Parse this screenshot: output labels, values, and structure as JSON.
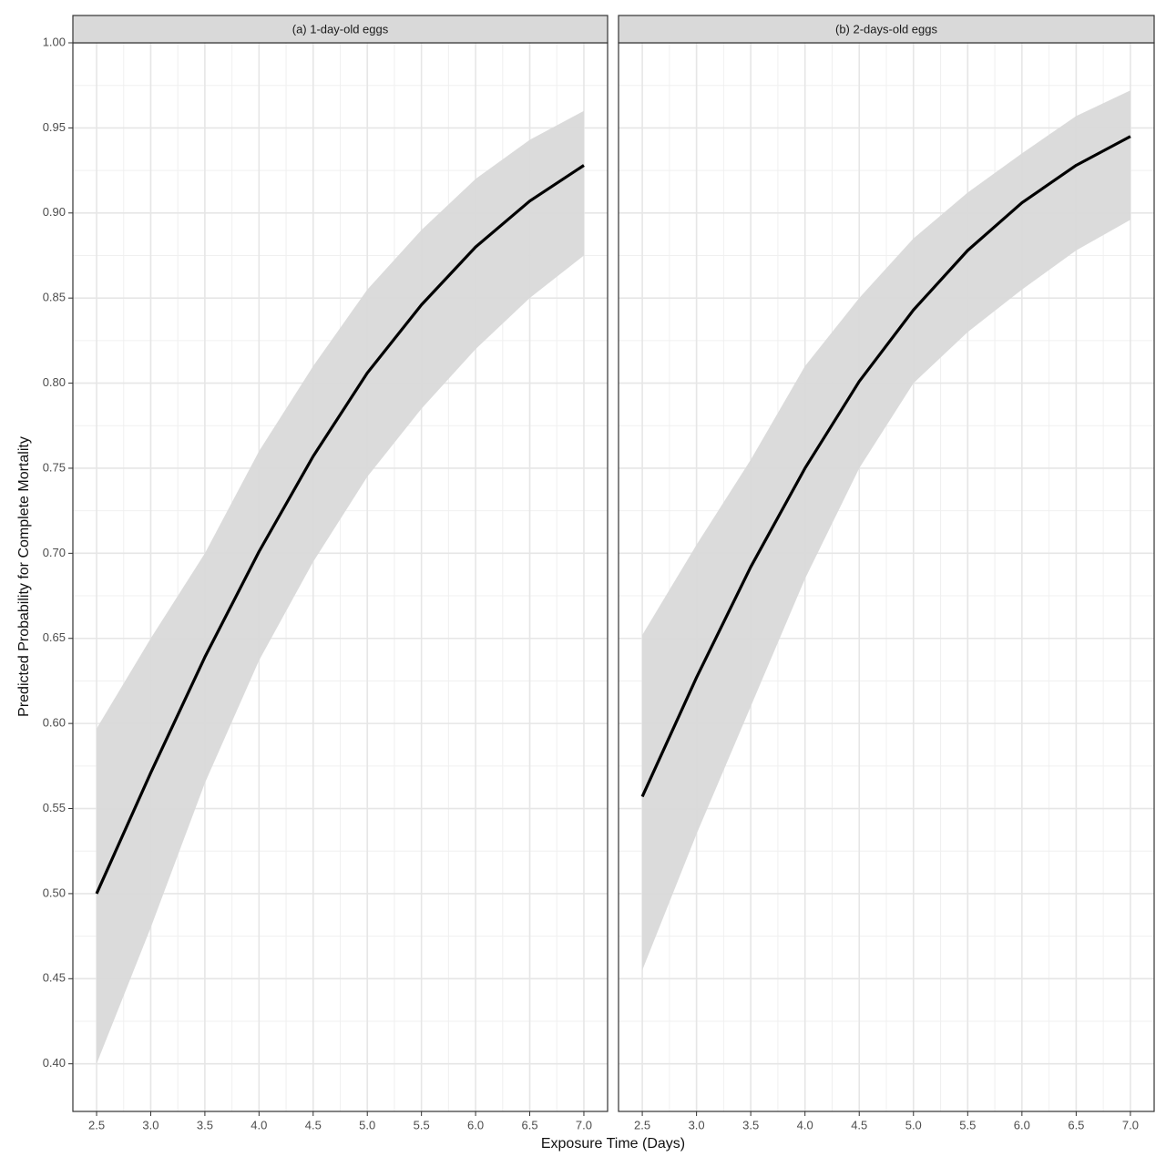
{
  "x_label": "Exposure Time (Days)",
  "y_label": "Predicted Probability for Complete Mortality",
  "chart_data": [
    {
      "type": "line",
      "title": "(a) 1-day-old eggs",
      "x": [
        2.5,
        3.0,
        3.5,
        4.0,
        4.5,
        5.0,
        5.5,
        6.0,
        6.5,
        7.0
      ],
      "series": [
        {
          "color": "#000000",
          "band_color": "#d9d9d9",
          "values": [
            0.5,
            0.571,
            0.639,
            0.701,
            0.757,
            0.806,
            0.846,
            0.88,
            0.907,
            0.928
          ],
          "lower": [
            0.4,
            0.48,
            0.565,
            0.637,
            0.695,
            0.745,
            0.785,
            0.82,
            0.85,
            0.875
          ],
          "upper": [
            0.597,
            0.65,
            0.7,
            0.76,
            0.81,
            0.855,
            0.89,
            0.92,
            0.943,
            0.96
          ]
        }
      ],
      "xlim": [
        2.281,
        7.219
      ],
      "ylim": [
        0.372,
        1.0
      ],
      "xticks": [
        2.5,
        {
          "value": 3,
          "label": "3.0"
        },
        3.5,
        {
          "value": 4,
          "label": "4.0"
        },
        4.5,
        {
          "value": 5,
          "label": "5.0"
        },
        5.5,
        {
          "value": 6,
          "label": "6.0"
        },
        6.5,
        {
          "value": 7,
          "label": "7.0"
        }
      ],
      "yticks": [
        {
          "value": 0.4,
          "label": "0.40"
        },
        {
          "value": 0.45,
          "label": "0.45"
        },
        {
          "value": 0.5,
          "label": "0.50"
        },
        {
          "value": 0.55,
          "label": "0.55"
        },
        {
          "value": 0.6,
          "label": "0.60"
        },
        {
          "value": 0.65,
          "label": "0.65"
        },
        {
          "value": 0.7,
          "label": "0.70"
        },
        {
          "value": 0.75,
          "label": "0.75"
        },
        {
          "value": 0.8,
          "label": "0.80"
        },
        {
          "value": 0.85,
          "label": "0.85"
        },
        {
          "value": 0.9,
          "label": "0.90"
        },
        {
          "value": 0.95,
          "label": "0.95"
        },
        {
          "value": 1.0,
          "label": "1.00"
        }
      ],
      "grid": true
    },
    {
      "type": "line",
      "title": "(b) 2-days-old eggs",
      "x": [
        2.5,
        3.0,
        3.5,
        4.0,
        4.5,
        5.0,
        5.5,
        6.0,
        6.5,
        7.0
      ],
      "series": [
        {
          "color": "#000000",
          "band_color": "#d9d9d9",
          "values": [
            0.557,
            0.627,
            0.692,
            0.75,
            0.801,
            0.843,
            0.878,
            0.906,
            0.928,
            0.945
          ],
          "lower": [
            0.455,
            0.535,
            0.61,
            0.685,
            0.75,
            0.8,
            0.83,
            0.855,
            0.878,
            0.896
          ],
          "upper": [
            0.652,
            0.705,
            0.755,
            0.81,
            0.85,
            0.885,
            0.912,
            0.935,
            0.957,
            0.972
          ]
        }
      ],
      "xlim": [
        2.281,
        7.219
      ],
      "ylim": [
        0.372,
        1.0
      ],
      "xticks": [
        2.5,
        {
          "value": 3,
          "label": "3.0"
        },
        3.5,
        {
          "value": 4,
          "label": "4.0"
        },
        4.5,
        {
          "value": 5,
          "label": "5.0"
        },
        5.5,
        {
          "value": 6,
          "label": "6.0"
        },
        6.5,
        {
          "value": 7,
          "label": "7.0"
        }
      ],
      "grid": true
    }
  ]
}
